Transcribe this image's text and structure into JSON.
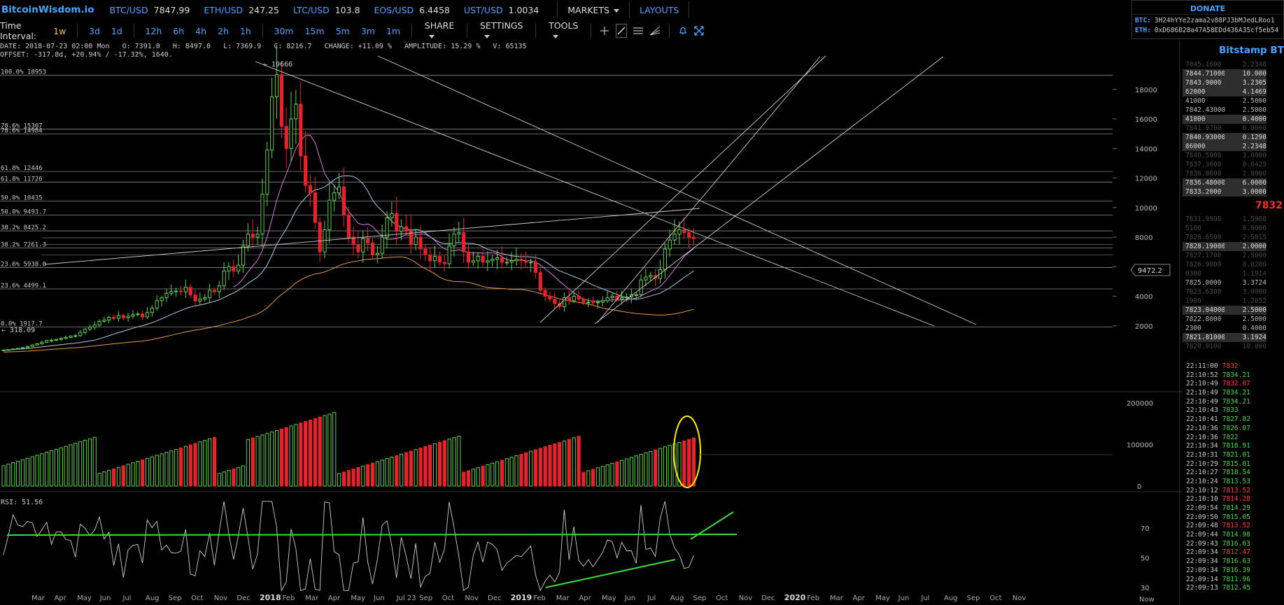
{
  "topbar": {
    "logo": "BitcoinWisdom.io",
    "tickers": [
      {
        "symbol": "BTC/USD",
        "price": "7847.99"
      },
      {
        "symbol": "ETH/USD",
        "price": "247.25"
      },
      {
        "symbol": "LTC/USD",
        "price": "103.8"
      },
      {
        "symbol": "EOS/USD",
        "price": "6.4458"
      },
      {
        "symbol": "UST/USD",
        "price": "1.0034"
      }
    ],
    "markets_label": "MARKETS",
    "layouts_label": "LAYOUTS"
  },
  "donate": {
    "title": "DONATE",
    "btc_label": "BTC:",
    "btc_address": "3H24hYYe2zama2v88PJ3bMJedLRoo1",
    "eth_label": "ETH:",
    "eth_address": "0xD686B28a47A58EDd436A35cf5eb54"
  },
  "toolbar": {
    "time_interval_label": "Time Interval:",
    "intervals": [
      "1w",
      "3d",
      "1d",
      "12h",
      "6h",
      "4h",
      "2h",
      "1h",
      "30m",
      "15m",
      "5m",
      "3m",
      "1m"
    ],
    "active_interval": "1w",
    "share_label": "SHARE",
    "settings_label": "SETTINGS",
    "tools_label": "TOOLS"
  },
  "info": {
    "line1": "DATE: 2018-07-23 02:00 Mon   O: 7391.0   H: 8497.0   L: 7369.9   C: 8216.7   CHANGE: +11.09 %   AMPLITUDE: 15.29 %   V: 65135",
    "line2": "OFFSET: -317.8d, +20.94% / -17.32%, 1640."
  },
  "chart_data": {
    "type": "candlestick",
    "timeframe": "1w",
    "price_axis": {
      "ticks": [
        2000,
        4000,
        6000,
        8000,
        10000,
        12000,
        14000,
        16000,
        18000
      ],
      "range": [
        300,
        20000
      ]
    },
    "crosshair_price": "9472.2",
    "annotations": {
      "high": "19666",
      "low": "318.09"
    },
    "fib_levels": [
      {
        "label": "100.0% 18953",
        "price": 18953
      },
      {
        "label": "78.6% 15307",
        "price": 15307
      },
      {
        "label": "78.6% 14984",
        "price": 14984
      },
      {
        "label": "61.8% 12446",
        "price": 12446
      },
      {
        "label": "61.8% 11726",
        "price": 11726
      },
      {
        "label": "50.0% 10435",
        "price": 10435
      },
      {
        "label": "50.0% 9493.7",
        "price": 9493.7
      },
      {
        "label": "38.2% 8425.2",
        "price": 8425.2
      },
      {
        "label": "38.2% 7261.3",
        "price": 7261.3
      },
      {
        "label": "23.6% 5938.0",
        "price": 5938.0
      },
      {
        "label": "23.6% 4499.1",
        "price": 4499.1
      },
      {
        "label": "0.0% 1917.7",
        "price": 1917.7
      }
    ],
    "extra_hlines": [
      6800,
      7500,
      7950
    ],
    "closes": [
      360,
      380,
      430,
      470,
      520,
      600,
      700,
      780,
      880,
      1000,
      1020,
      1080,
      1150,
      1210,
      1300,
      1330,
      1550,
      1760,
      1900,
      2050,
      2300,
      2380,
      2580,
      2500,
      2700,
      2540,
      2650,
      2750,
      2800,
      2600,
      2900,
      3200,
      3700,
      3900,
      4200,
      4330,
      4350,
      4300,
      4600,
      4080,
      3680,
      3800,
      3900,
      4400,
      4300,
      4700,
      5700,
      6000,
      5700,
      6100,
      7400,
      8200,
      8000,
      8200,
      10900,
      13900,
      17500,
      19000,
      15500,
      14000,
      16000,
      17000,
      13500,
      11500,
      11000,
      9000,
      7000,
      8500,
      10500,
      11000,
      11400,
      9500,
      8000,
      7500,
      7000,
      7900,
      7600,
      6800,
      6900,
      8000,
      9300,
      9600,
      8400,
      8700,
      8400,
      7500,
      8000,
      7200,
      6800,
      6400,
      6700,
      6300,
      6200,
      7400,
      8200,
      8300,
      7000,
      6300,
      6400,
      6700,
      6300,
      6400,
      6500,
      6600,
      6300,
      6300,
      6400,
      6500,
      6400,
      6300,
      6300,
      5600,
      4400,
      4000,
      3800,
      3500,
      3300,
      3900,
      3700,
      4000,
      3800,
      3600,
      3600,
      3550,
      3600,
      3700,
      3900,
      4000,
      3800,
      3900,
      3950,
      4100,
      4100,
      5100,
      5300,
      5400,
      5200,
      5800,
      7200,
      7800,
      8200,
      8500,
      8300,
      8000,
      7900
    ],
    "volume_axis": {
      "ticks": [
        0,
        100000,
        200000
      ]
    },
    "rsi": {
      "label": "RSI: 51.56",
      "ticks": [
        30,
        50,
        70
      ]
    },
    "x_labels": [
      "Mar",
      "Apr",
      "May",
      "Jun",
      "Jul",
      "Aug",
      "Sep",
      "Oct",
      "Nov",
      "Dec",
      "2018",
      "Feb",
      "Mar",
      "Apr",
      "May",
      "Jun",
      "Jul 23",
      "Sep",
      "Oct",
      "Nov",
      "Dec",
      "2019",
      "Feb",
      "Mar",
      "Apr",
      "May",
      "Jun",
      "Jul",
      "Aug",
      "Sep",
      "Oct",
      "Nov",
      "Dec",
      "2020",
      "Feb",
      "Mar",
      "Apr",
      "May",
      "Jun",
      "Jul",
      "Aug",
      "Sep",
      "Oct",
      "Nov"
    ],
    "x_now_label": "Now",
    "colors": {
      "up": "#5fd24a",
      "down": "#e8222a",
      "ma_white": "#aecbe6",
      "ma_violet": "#d77be0",
      "ma_orange": "#e89b3a",
      "rsi_trend": "#3ddc3d",
      "highlight": "#ffee00"
    }
  },
  "orderbook": {
    "title": "Bitstamp BTC",
    "asks": [
      {
        "price": "7845.1600",
        "amount": "2.2348",
        "style": "dim"
      },
      {
        "price": "7844.71000",
        "amount": "10.000",
        "style": "hl"
      },
      {
        "price": "7843.9000",
        "amount": "3.2305",
        "style": "hl"
      },
      {
        "price": "62000",
        "amount": "4.1469",
        "style": "hl"
      },
      {
        "price": "41000",
        "amount": "2.5000",
        "style": "norm"
      },
      {
        "price": "7842.43000",
        "amount": "2.5000",
        "style": "norm"
      },
      {
        "price": "41000",
        "amount": "0.4000",
        "style": "hl"
      },
      {
        "price": "7841.0700",
        "amount": "6.0000",
        "style": "dim"
      },
      {
        "price": "7840.93000",
        "amount": "0.1290",
        "style": "hl"
      },
      {
        "price": "86000",
        "amount": "2.2348",
        "style": "hl"
      },
      {
        "price": "7840.5900",
        "amount": "3.0000",
        "style": "dim"
      },
      {
        "price": "7837.3600",
        "amount": "0.0425",
        "style": "dim"
      },
      {
        "price": "7836.8600",
        "amount": "2.8000",
        "style": "dim"
      },
      {
        "price": "7836.48000",
        "amount": "6.0000",
        "style": "hl"
      },
      {
        "price": "7833.2000",
        "amount": "3.0000",
        "style": "hl"
      }
    ],
    "last_price": "7832",
    "bids": [
      {
        "price": "7831.9900",
        "amount": "1.5908",
        "style": "dim"
      },
      {
        "price": "5100",
        "amount": "0.0006",
        "style": "dim"
      },
      {
        "price": "7828.6500",
        "amount": "2.5015",
        "style": "dim"
      },
      {
        "price": "7828.19000",
        "amount": "2.0000",
        "style": "hl"
      },
      {
        "price": "7827.1700",
        "amount": "2.5000",
        "style": "dim"
      },
      {
        "price": "7826.9000",
        "amount": "0.0200",
        "style": "dim"
      },
      {
        "price": "0300",
        "amount": "1.1914",
        "style": "dim"
      },
      {
        "price": "7825.0000",
        "amount": "3.3724",
        "style": "norm"
      },
      {
        "price": "7823.6300",
        "amount": "3.0000",
        "style": "dim"
      },
      {
        "price": "1900",
        "amount": "1.2852",
        "style": "dim"
      },
      {
        "price": "7823.04000",
        "amount": "2.5000",
        "style": "hl"
      },
      {
        "price": "7822.8000",
        "amount": "2.5000",
        "style": "norm"
      },
      {
        "price": "2300",
        "amount": "0.4000",
        "style": "norm"
      },
      {
        "price": "7821.81000",
        "amount": "3.1924",
        "style": "hl"
      },
      {
        "price": "7820.0100",
        "amount": "10.000",
        "style": "dim"
      }
    ],
    "trades": [
      {
        "time": "22:11:00",
        "price": "7832",
        "dir": "dn"
      },
      {
        "time": "22:10:52",
        "price": "7834.21",
        "dir": "up"
      },
      {
        "time": "22:10:49",
        "price": "7832.07",
        "dir": "dn"
      },
      {
        "time": "22:10:49",
        "price": "7834.21",
        "dir": "up"
      },
      {
        "time": "22:10:49",
        "price": "7834.21",
        "dir": "up"
      },
      {
        "time": "22:10:43",
        "price": "7833",
        "dir": "up"
      },
      {
        "time": "22:10:41",
        "price": "7827.82",
        "dir": "up"
      },
      {
        "time": "22:10:36",
        "price": "7826.07",
        "dir": "up"
      },
      {
        "time": "22:10:36",
        "price": "7822",
        "dir": "up"
      },
      {
        "time": "22:10:34",
        "price": "7818.91",
        "dir": "up"
      },
      {
        "time": "22:10:31",
        "price": "7821.01",
        "dir": "up"
      },
      {
        "time": "22:10:29",
        "price": "7815.01",
        "dir": "up"
      },
      {
        "time": "22:10:27",
        "price": "7818.54",
        "dir": "up"
      },
      {
        "time": "22:10:24",
        "price": "7813.53",
        "dir": "up"
      },
      {
        "time": "22:10:12",
        "price": "7813.52",
        "dir": "dn"
      },
      {
        "time": "22:10:10",
        "price": "7814.28",
        "dir": "dn"
      },
      {
        "time": "22:09:54",
        "price": "7814.29",
        "dir": "up"
      },
      {
        "time": "22:09:50",
        "price": "7815.05",
        "dir": "up"
      },
      {
        "time": "22:09:48",
        "price": "7813.52",
        "dir": "dn"
      },
      {
        "time": "22:09:44",
        "price": "7814.98",
        "dir": "up"
      },
      {
        "time": "22:09:43",
        "price": "7816.63",
        "dir": "up"
      },
      {
        "time": "22:09:34",
        "price": "7812.47",
        "dir": "dn"
      },
      {
        "time": "22:09:34",
        "price": "7816.63",
        "dir": "up"
      },
      {
        "time": "22:09:34",
        "price": "7816.39",
        "dir": "up"
      },
      {
        "time": "22:09:14",
        "price": "7811.96",
        "dir": "up"
      },
      {
        "time": "22:09:13",
        "price": "7812.45",
        "dir": "up"
      }
    ]
  }
}
